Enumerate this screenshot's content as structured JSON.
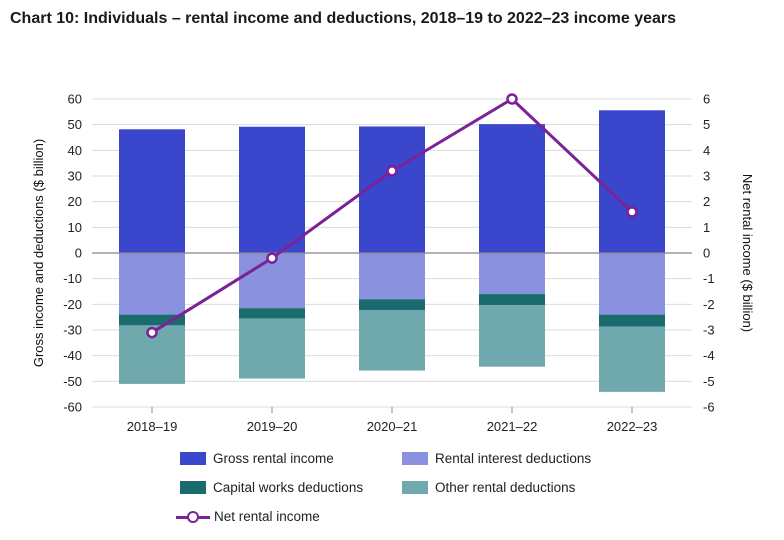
{
  "title": "Chart 10: Individuals – rental income and deductions, 2018–19 to 2022–23 income years",
  "chart_data": {
    "type": "bar",
    "categories": [
      "2018–19",
      "2019–20",
      "2020–21",
      "2021–22",
      "2022–23"
    ],
    "ylabel": "Gross income and deductions ($ billion)",
    "y2label": "Net rental income ($ billion)",
    "ylim": [
      -60,
      60
    ],
    "y2lim": [
      -6,
      6
    ],
    "yticks": [
      -60,
      -50,
      -40,
      -30,
      -20,
      -10,
      0,
      10,
      20,
      30,
      40,
      50,
      60
    ],
    "y2ticks": [
      -6,
      -5,
      -4,
      -3,
      -2,
      -1,
      0,
      1,
      2,
      3,
      4,
      5,
      6
    ],
    "grid": true,
    "legend_position": "bottom",
    "series": [
      {
        "name": "Gross rental income",
        "kind": "bar",
        "axis": "left",
        "color": "#3a46cc",
        "values": [
          48.2,
          49.2,
          49.3,
          50.2,
          55.6
        ]
      },
      {
        "name": "Rental interest deductions",
        "kind": "bar",
        "axis": "left",
        "color": "#8a92e0",
        "values": [
          -24.0,
          -21.5,
          -18.0,
          -16.0,
          -24.0
        ]
      },
      {
        "name": "Capital works deductions",
        "kind": "bar",
        "axis": "left",
        "color": "#1a6b6d",
        "values": [
          -4.2,
          -4.0,
          -4.2,
          -4.3,
          -4.7
        ]
      },
      {
        "name": "Other rental deductions",
        "kind": "bar",
        "axis": "left",
        "color": "#6fa8ad",
        "values": [
          -22.8,
          -23.4,
          -23.6,
          -24.0,
          -25.4
        ]
      },
      {
        "name": "Net rental income",
        "kind": "line",
        "axis": "right",
        "color": "#7b2396",
        "values": [
          -3.1,
          -0.2,
          3.2,
          6.0,
          1.6
        ]
      }
    ]
  }
}
